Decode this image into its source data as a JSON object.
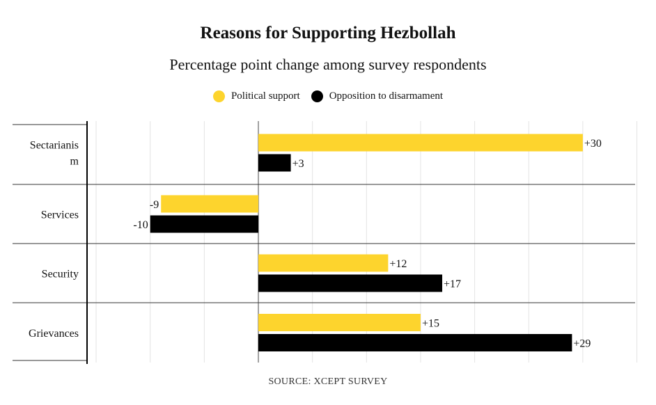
{
  "chart_data": {
    "type": "bar",
    "orientation": "horizontal",
    "title": "Reasons for Supporting Hezbollah",
    "subtitle": "Percentage point change among survey respondents",
    "categories": [
      "Sectarianism",
      "Services",
      "Security",
      "Grievances"
    ],
    "series": [
      {
        "name": "Political support",
        "color": "#FDD42D",
        "values": [
          30,
          -9,
          12,
          15
        ],
        "labels": [
          "+30",
          "-9",
          "+12",
          "+15"
        ]
      },
      {
        "name": "Opposition to disarmament",
        "color": "#000000",
        "values": [
          3,
          -10,
          17,
          29
        ],
        "labels": [
          "+3",
          "-10",
          "+17",
          "+29"
        ]
      }
    ],
    "xlim": [
      -15,
      35
    ],
    "grid": true,
    "legend_position": "top-center",
    "source": "SOURCE: XCEPT SURVEY"
  }
}
